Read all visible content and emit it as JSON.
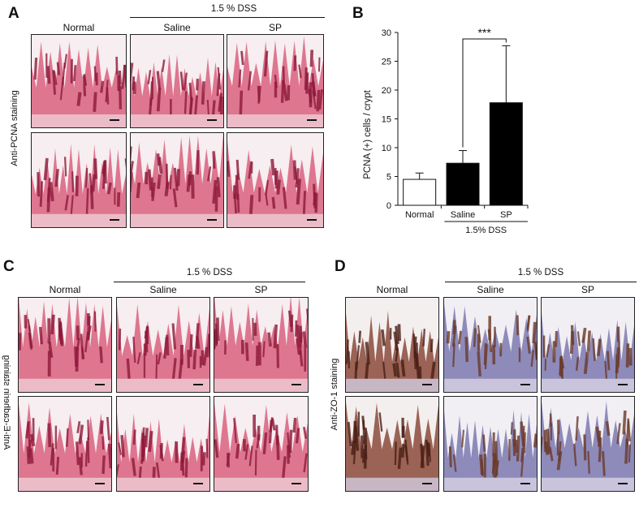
{
  "panels": {
    "A": {
      "letter": "A",
      "group_label": "1.5 % DSS",
      "columns": [
        "Normal",
        "Saline",
        "SP"
      ],
      "row_label": "Anti-PCNA staining"
    },
    "B": {
      "letter": "B"
    },
    "C": {
      "letter": "C",
      "group_label": "1.5 % DSS",
      "columns": [
        "Normal",
        "Saline",
        "SP"
      ],
      "row_label": "Anti-E-cadherin staining"
    },
    "D": {
      "letter": "D",
      "group_label": "1.5 % DSS",
      "columns": [
        "Normal",
        "Saline",
        "SP"
      ],
      "row_label": "Anti-ZO-1 staining"
    }
  },
  "chart_data": {
    "type": "bar",
    "categories": [
      "Normal",
      "Saline",
      "SP"
    ],
    "values": [
      4.5,
      7.3,
      17.8
    ],
    "errors": [
      1.1,
      2.2,
      9.9
    ],
    "bar_colors": [
      "#ffffff",
      "#000000",
      "#000000"
    ],
    "ylabel": "PCNA  (+) cells / crypt",
    "ylim": [
      0,
      30
    ],
    "yticks": [
      0,
      5,
      10,
      15,
      20,
      25,
      30
    ],
    "group_label": "1.5% DSS",
    "significance": "***",
    "grid": false
  }
}
